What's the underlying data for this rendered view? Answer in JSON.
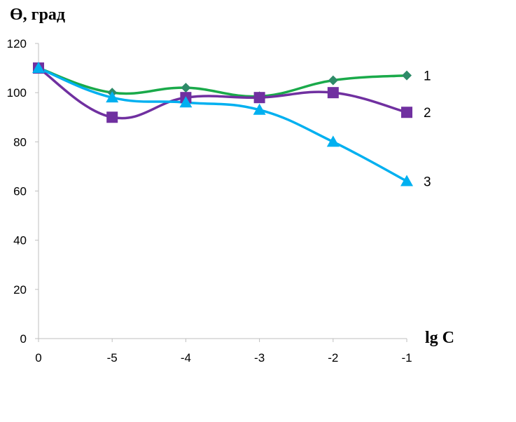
{
  "chart_data": {
    "type": "line",
    "ylabel": "Ө, град",
    "xlabel": "lg C",
    "categories": [
      "0",
      "-5",
      "-4",
      "-3",
      "-2",
      "-1"
    ],
    "ylim": [
      0,
      120
    ],
    "yticks": [
      "0",
      "20",
      "40",
      "60",
      "80",
      "100",
      "120"
    ],
    "grid": false,
    "series": [
      {
        "label": "1",
        "marker": "diamond",
        "color": "#1aaa4a",
        "marker_color": "#2e8b68",
        "values": [
          110,
          100,
          102,
          98.5,
          105,
          107
        ]
      },
      {
        "label": "2",
        "marker": "square",
        "color": "#7030a0",
        "marker_color": "#7030a0",
        "values": [
          110,
          90,
          98,
          98,
          100,
          92
        ]
      },
      {
        "label": "3",
        "marker": "triangle",
        "color": "#00b0f0",
        "marker_color": "#00b0f0",
        "values": [
          110,
          98,
          96,
          93,
          80,
          64
        ]
      }
    ]
  }
}
